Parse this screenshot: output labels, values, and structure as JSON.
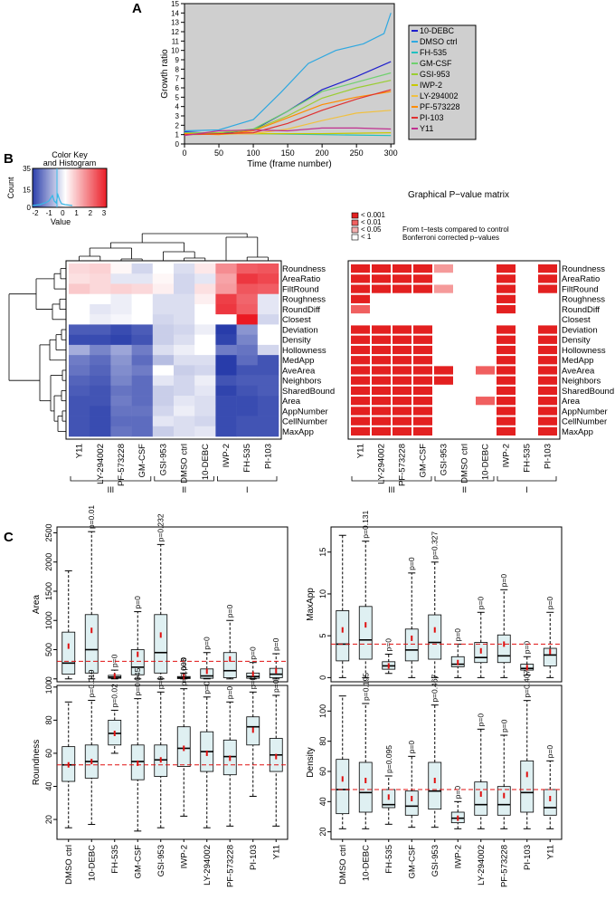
{
  "panels": {
    "a": "A",
    "b": "B",
    "c": "C"
  },
  "line_chart": {
    "type": "line",
    "xlabel": "Time (frame number)",
    "ylabel": "Growth ratio",
    "xlim": [
      0,
      305
    ],
    "ylim": [
      0,
      15
    ],
    "xticks": [
      0,
      50,
      100,
      150,
      200,
      250,
      300
    ],
    "yticks": [
      0,
      1,
      2,
      3,
      4,
      5,
      6,
      7,
      8,
      9,
      10,
      11,
      12,
      13,
      14,
      15
    ],
    "legend": [
      {
        "name": "10-DEBC",
        "color": "#1f1fcc"
      },
      {
        "name": "DMSO ctrl",
        "color": "#2fa8e0"
      },
      {
        "name": "FH-535",
        "color": "#20c0c0"
      },
      {
        "name": "GM-CSF",
        "color": "#6fd06f"
      },
      {
        "name": "GSI-953",
        "color": "#9acd32"
      },
      {
        "name": "IWP-2",
        "color": "#c8c800"
      },
      {
        "name": "LY-294002",
        "color": "#f0c040"
      },
      {
        "name": "PF-573228",
        "color": "#ff8c00"
      },
      {
        "name": "PI-103",
        "color": "#e03030"
      },
      {
        "name": "Y11",
        "color": "#c03090"
      }
    ],
    "series": [
      {
        "name": "10-DEBC",
        "points": [
          [
            0,
            1.3
          ],
          [
            50,
            1.1
          ],
          [
            100,
            1.5
          ],
          [
            150,
            3.5
          ],
          [
            200,
            5.8
          ],
          [
            250,
            7.2
          ],
          [
            300,
            8.8
          ]
        ]
      },
      {
        "name": "DMSO ctrl",
        "points": [
          [
            0,
            1.4
          ],
          [
            50,
            1.5
          ],
          [
            100,
            2.6
          ],
          [
            140,
            5.5
          ],
          [
            180,
            8.6
          ],
          [
            220,
            10.0
          ],
          [
            260,
            10.7
          ],
          [
            290,
            11.8
          ],
          [
            300,
            14.0
          ]
        ]
      },
      {
        "name": "FH-535",
        "points": [
          [
            0,
            1.0
          ],
          [
            100,
            1.1
          ],
          [
            200,
            1.0
          ],
          [
            300,
            0.9
          ]
        ]
      },
      {
        "name": "GM-CSF",
        "points": [
          [
            0,
            1.2
          ],
          [
            50,
            1.2
          ],
          [
            100,
            1.6
          ],
          [
            150,
            3.5
          ],
          [
            200,
            5.6
          ],
          [
            250,
            6.6
          ],
          [
            300,
            7.6
          ]
        ]
      },
      {
        "name": "GSI-953",
        "points": [
          [
            0,
            1.1
          ],
          [
            50,
            1.2
          ],
          [
            100,
            1.5
          ],
          [
            150,
            3.0
          ],
          [
            200,
            4.9
          ],
          [
            250,
            6.0
          ],
          [
            300,
            6.8
          ]
        ]
      },
      {
        "name": "IWP-2",
        "points": [
          [
            0,
            1.0
          ],
          [
            100,
            1.1
          ],
          [
            200,
            1.1
          ],
          [
            300,
            1.2
          ]
        ]
      },
      {
        "name": "LY-294002",
        "points": [
          [
            0,
            1.0
          ],
          [
            100,
            1.1
          ],
          [
            150,
            1.6
          ],
          [
            200,
            2.5
          ],
          [
            250,
            3.3
          ],
          [
            300,
            3.6
          ]
        ]
      },
      {
        "name": "PF-573228",
        "points": [
          [
            0,
            1.1
          ],
          [
            50,
            1.0
          ],
          [
            100,
            1.4
          ],
          [
            150,
            2.8
          ],
          [
            200,
            4.2
          ],
          [
            250,
            5.0
          ],
          [
            300,
            5.6
          ]
        ]
      },
      {
        "name": "PI-103",
        "points": [
          [
            0,
            1.0
          ],
          [
            100,
            1.2
          ],
          [
            150,
            2.2
          ],
          [
            200,
            3.6
          ],
          [
            250,
            4.8
          ],
          [
            300,
            5.8
          ]
        ]
      },
      {
        "name": "Y11",
        "points": [
          [
            0,
            0.9
          ],
          [
            50,
            1.4
          ],
          [
            100,
            1.5
          ],
          [
            150,
            1.4
          ],
          [
            200,
            1.7
          ],
          [
            250,
            1.7
          ],
          [
            300,
            1.6
          ]
        ]
      }
    ]
  },
  "heatmap": {
    "color_key_title": "Color Key",
    "color_key_subtitle": "and Histogram",
    "count_label": "Count",
    "count_ticks": [
      "0",
      "15",
      "35"
    ],
    "value_label": "Value",
    "value_ticks": [
      "-2",
      "-1",
      "0",
      "1",
      "2",
      "3"
    ],
    "rows": [
      "Roundness",
      "AreaRatio",
      "FiltRound",
      "Roughness",
      "RoundDiff",
      "Closest",
      "Deviation",
      "Density",
      "Hollowness",
      "MedApp",
      "AveArea",
      "Neighbors",
      "SharedBound",
      "Area",
      "AppNumber",
      "CellNumber",
      "MaxApp"
    ],
    "columns": [
      "Y11",
      "LY-294002",
      "PF-573228",
      "GM-CSF",
      "GSI-953",
      "DMSO ctrl",
      "10-DEBC",
      "IWP-2",
      "FH-535",
      "PI-103"
    ],
    "values": [
      [
        0.5,
        0.6,
        0.1,
        -0.5,
        0.0,
        -0.4,
        0.3,
        1.5,
        2.1,
        2.2
      ],
      [
        0.4,
        0.5,
        -0.3,
        -0.3,
        0.1,
        -0.5,
        -0.3,
        1.2,
        2.6,
        2.4
      ],
      [
        0.7,
        0.5,
        0.6,
        0.5,
        0.2,
        -0.5,
        0.4,
        1.3,
        2.2,
        2.1
      ],
      [
        0.0,
        0.0,
        -0.2,
        0.0,
        -0.4,
        -0.4,
        0.2,
        2.5,
        2.0,
        -0.3
      ],
      [
        0.0,
        -0.3,
        -0.2,
        0.0,
        -0.4,
        -0.4,
        0.0,
        2.6,
        2.1,
        -0.3
      ],
      [
        0.0,
        -0.2,
        -0.1,
        0.0,
        -0.5,
        -0.4,
        0.0,
        0.0,
        3.0,
        -0.5
      ],
      [
        -2.0,
        -2.0,
        -2.2,
        -2.0,
        -0.6,
        -0.5,
        -0.2,
        -2.4,
        -1.3,
        0.0
      ],
      [
        -2.2,
        -2.2,
        -2.3,
        -2.1,
        -0.6,
        -0.4,
        0.0,
        -2.3,
        -1.5,
        0.0
      ],
      [
        -1.0,
        -1.5,
        -1.1,
        -1.6,
        -0.4,
        -0.2,
        0.0,
        -1.6,
        -1.7,
        -0.5
      ],
      [
        -1.6,
        -1.8,
        -1.3,
        -1.8,
        -0.8,
        -0.4,
        -0.4,
        -2.5,
        -1.8,
        -2.1
      ],
      [
        -1.7,
        -1.9,
        -1.4,
        -1.6,
        0.0,
        -0.6,
        -0.5,
        -2.5,
        -2.1,
        -2.1
      ],
      [
        -1.9,
        -2.0,
        -1.5,
        -1.8,
        -0.3,
        -0.5,
        -0.2,
        -2.1,
        -2.0,
        -2.0
      ],
      [
        -2.0,
        -2.1,
        -1.7,
        -1.8,
        -0.6,
        -0.5,
        -0.3,
        -2.3,
        -2.1,
        -2.0
      ],
      [
        -2.1,
        -2.1,
        -1.6,
        -1.8,
        -0.6,
        -0.3,
        -0.4,
        -2.2,
        -2.2,
        -2.1
      ],
      [
        -2.1,
        -2.2,
        -1.7,
        -1.7,
        -0.5,
        -0.2,
        -0.4,
        -2.2,
        -2.2,
        -2.1
      ],
      [
        -2.1,
        -2.2,
        -1.8,
        -1.8,
        -0.3,
        -0.4,
        -0.5,
        -2.2,
        -2.1,
        -2.1
      ],
      [
        -2.1,
        -2.2,
        -1.7,
        -1.8,
        -0.6,
        -0.4,
        -0.3,
        -2.2,
        -2.1,
        -2.1
      ]
    ],
    "groups": [
      "III",
      "II",
      "I"
    ]
  },
  "pvalue_matrix": {
    "title": "Graphical P−value matrix",
    "legend": [
      "< 0.001",
      "< 0.01",
      "< 0.05",
      "< 1"
    ],
    "note_1": "From t−tests compared to control",
    "note_2": "Bonferroni corrected p−values",
    "levels": [
      [
        0,
        0,
        0,
        0,
        2,
        9,
        9,
        0,
        9,
        0
      ],
      [
        0,
        0,
        0,
        0,
        9,
        9,
        9,
        0,
        9,
        0
      ],
      [
        0,
        0,
        0,
        0,
        2,
        9,
        9,
        0,
        9,
        0
      ],
      [
        0,
        9,
        9,
        9,
        9,
        9,
        9,
        0,
        9,
        9
      ],
      [
        1,
        9,
        9,
        9,
        9,
        9,
        9,
        0,
        9,
        9
      ],
      [
        9,
        9,
        9,
        9,
        9,
        9,
        9,
        9,
        9,
        9
      ],
      [
        0,
        0,
        0,
        0,
        9,
        9,
        9,
        0,
        9,
        0
      ],
      [
        0,
        0,
        0,
        0,
        9,
        9,
        9,
        0,
        9,
        0
      ],
      [
        0,
        0,
        0,
        0,
        9,
        9,
        9,
        0,
        9,
        0
      ],
      [
        0,
        0,
        0,
        0,
        9,
        9,
        9,
        0,
        9,
        0
      ],
      [
        0,
        0,
        0,
        0,
        0,
        9,
        1,
        0,
        9,
        0
      ],
      [
        0,
        0,
        0,
        0,
        0,
        9,
        9,
        0,
        9,
        0
      ],
      [
        0,
        0,
        0,
        0,
        9,
        9,
        9,
        0,
        9,
        0
      ],
      [
        0,
        0,
        0,
        0,
        9,
        9,
        1,
        0,
        9,
        0
      ],
      [
        0,
        0,
        0,
        0,
        9,
        9,
        9,
        0,
        9,
        0
      ],
      [
        0,
        0,
        0,
        0,
        9,
        9,
        9,
        0,
        9,
        0
      ],
      [
        0,
        0,
        0,
        0,
        9,
        9,
        9,
        0,
        9,
        0
      ]
    ]
  },
  "boxplots": {
    "categories": [
      "DMSO ctrl",
      "10-DEBC",
      "FH-535",
      "GM-CSF",
      "GSI-953",
      "IWP-2",
      "LY-294002",
      "PF-573228",
      "PI-103",
      "Y11"
    ],
    "plots": [
      {
        "ylabel": "Area",
        "ylim": [
          -50,
          2600
        ],
        "yticks": [
          0,
          500,
          1000,
          1500,
          2000,
          2500
        ],
        "ref": 300,
        "p": [
          "",
          "p=0.01",
          "p=0",
          "p=0",
          "p=0.232",
          "p=0",
          "p=0",
          "p=0",
          "p=0",
          "p=0"
        ],
        "boxes": [
          [
            0,
            80,
            270,
            800,
            1850,
            560
          ],
          [
            0,
            100,
            500,
            1100,
            2520,
            830
          ],
          [
            0,
            10,
            30,
            60,
            150,
            50
          ],
          [
            0,
            70,
            200,
            500,
            1150,
            420
          ],
          [
            0,
            100,
            450,
            1100,
            2300,
            750
          ],
          [
            0,
            5,
            20,
            40,
            100,
            35
          ],
          [
            0,
            10,
            50,
            170,
            450,
            130
          ],
          [
            0,
            20,
            140,
            450,
            1000,
            340
          ],
          [
            0,
            10,
            40,
            100,
            280,
            80
          ],
          [
            0,
            20,
            80,
            180,
            430,
            140
          ]
        ]
      },
      {
        "ylabel": "MaxApp",
        "ylim": [
          -0.5,
          18
        ],
        "yticks": [
          0,
          5,
          10,
          15
        ],
        "ref": 4,
        "p": [
          "",
          "p=0.131",
          "p=0",
          "p=0",
          "p=0.327",
          "p=0",
          "p=0",
          "p=0",
          "p=0",
          "p=0"
        ],
        "boxes": [
          [
            0,
            2,
            4,
            8,
            17,
            5.7
          ],
          [
            0,
            2.2,
            4.5,
            8.5,
            16.3,
            6.3
          ],
          [
            0.5,
            1,
            1.4,
            1.9,
            2.8,
            1.4
          ],
          [
            0,
            2,
            3.3,
            5.8,
            12.5,
            4.7
          ],
          [
            0,
            2.2,
            4.2,
            7.5,
            13.8,
            5.7
          ],
          [
            0,
            1.3,
            1.6,
            2.5,
            4,
            1.8
          ],
          [
            0,
            1.8,
            2.4,
            4.2,
            7.8,
            3.2
          ],
          [
            0,
            1.8,
            2.6,
            5.1,
            10.5,
            4
          ],
          [
            0.3,
            0.9,
            1.1,
            1.6,
            2.5,
            1.2
          ],
          [
            0,
            1.4,
            2.7,
            3.5,
            7.8,
            3.1
          ]
        ]
      },
      {
        "ylabel": "Roundness",
        "ylim": [
          8,
          101
        ],
        "yticks": [
          20,
          40,
          60,
          80,
          100
        ],
        "ref": 53,
        "p": [
          "",
          "p=0.019",
          "p=0.02",
          "p=0.045",
          "p=0",
          "p=0.003",
          "p=0",
          "p=0",
          "p=0",
          "p=0"
        ],
        "boxes": [
          [
            15,
            43,
            53,
            64,
            91,
            53
          ],
          [
            17,
            45,
            55,
            65,
            92,
            55
          ],
          [
            60,
            65,
            72,
            80,
            86,
            72
          ],
          [
            13,
            44,
            55,
            65,
            93,
            54
          ],
          [
            15,
            46,
            56,
            65,
            97,
            56
          ],
          [
            22,
            52,
            63,
            76,
            99,
            63
          ],
          [
            15,
            49,
            61,
            73,
            94,
            60
          ],
          [
            16,
            47,
            58,
            68,
            91,
            57
          ],
          [
            34,
            65,
            76,
            82,
            97,
            74
          ],
          [
            16,
            49,
            59,
            69,
            95,
            58
          ]
        ]
      },
      {
        "ylabel": "Density",
        "ylim": [
          15,
          117
        ],
        "yticks": [
          20,
          40,
          60,
          80,
          100
        ],
        "ref": 48,
        "p": [
          "",
          "p=0.195",
          "p=0.095",
          "p=0",
          "p=0.467",
          "p=0",
          "p=0",
          "p=0",
          "p=0.407",
          "p=0"
        ],
        "boxes": [
          [
            22,
            32,
            48,
            68,
            110,
            55
          ],
          [
            22,
            33,
            46,
            66,
            105,
            54
          ],
          [
            25,
            36,
            38,
            48,
            57,
            43
          ],
          [
            23,
            31,
            37,
            47,
            70,
            42
          ],
          [
            23,
            35,
            47,
            66,
            104,
            54
          ],
          [
            22,
            26,
            29,
            33,
            40,
            29
          ],
          [
            22,
            31,
            38,
            53,
            88,
            45
          ],
          [
            22,
            31,
            38,
            50,
            84,
            44
          ],
          [
            22,
            33,
            46,
            67,
            107,
            58
          ],
          [
            22,
            31,
            36,
            48,
            67,
            42
          ]
        ]
      }
    ]
  }
}
